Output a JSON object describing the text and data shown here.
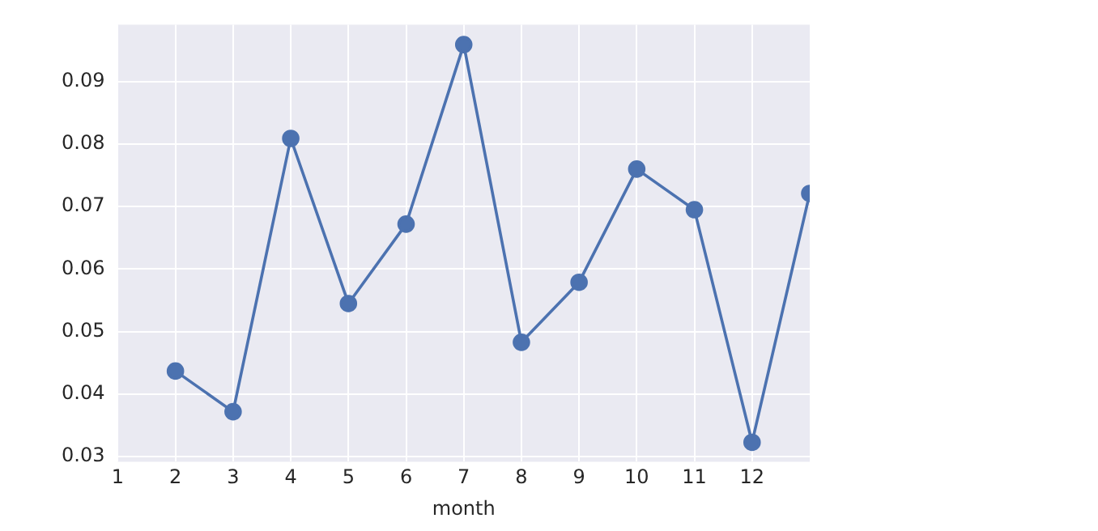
{
  "chart_data": {
    "type": "line",
    "xlabel": "month",
    "x": [
      2,
      3,
      4,
      5,
      6,
      7,
      8,
      9,
      10,
      11,
      12,
      13
    ],
    "series": [
      {
        "color": "#4c72b0",
        "values": [
          0.0437,
          0.0372,
          0.0809,
          0.0545,
          0.0672,
          0.0959,
          0.0483,
          0.0579,
          0.076,
          0.0695,
          0.0323,
          0.0721
        ]
      }
    ],
    "xlim": [
      1,
      13
    ],
    "xticks": [
      1,
      2,
      3,
      4,
      5,
      6,
      7,
      8,
      9,
      10,
      11,
      12
    ],
    "ylim": [
      0.0292,
      0.0991
    ],
    "yticks": [
      0.03,
      0.04,
      0.05,
      0.06,
      0.07,
      0.08,
      0.09
    ],
    "grid": true,
    "marker": "circle",
    "line_style": "solid"
  }
}
